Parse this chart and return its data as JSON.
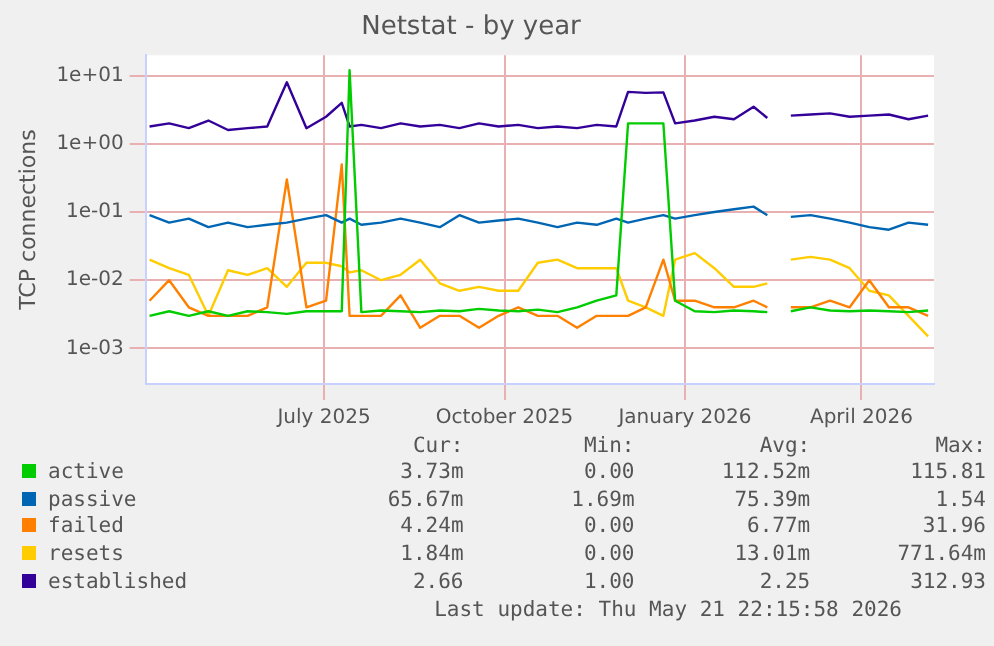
{
  "chart_data": {
    "type": "line",
    "title": "Netstat - by year",
    "ylabel": "TCP connections",
    "x": [
      "2025-04-03",
      "2025-04-13",
      "2025-04-23",
      "2025-05-03",
      "2025-05-13",
      "2025-05-23",
      "2025-06-02",
      "2025-06-12",
      "2025-06-22",
      "2025-07-02",
      "2025-07-10",
      "2025-07-14",
      "2025-07-20",
      "2025-07-30",
      "2025-08-09",
      "2025-08-19",
      "2025-08-29",
      "2025-09-08",
      "2025-09-18",
      "2025-09-28",
      "2025-10-08",
      "2025-10-18",
      "2025-10-28",
      "2025-11-07",
      "2025-11-17",
      "2025-11-27",
      "2025-12-03",
      "2025-12-12",
      "2025-12-21",
      "2025-12-27",
      "2026-01-06",
      "2026-01-16",
      "2026-01-26",
      "2026-02-05",
      "2026-02-12",
      "2026-02-18",
      "2026-02-24",
      "2026-03-06",
      "2026-03-16",
      "2026-03-26",
      "2026-04-05",
      "2026-04-15",
      "2026-04-25",
      "2026-05-05"
    ],
    "series": [
      {
        "name": "active",
        "color": "#00cc00",
        "values": [
          0.003,
          0.0035,
          0.003,
          0.0035,
          0.003,
          0.0035,
          0.0034,
          0.0032,
          0.0035,
          0.0035,
          0.0035,
          12,
          0.0034,
          0.0036,
          0.0035,
          0.0034,
          0.0036,
          0.0035,
          0.0038,
          0.0036,
          0.0035,
          0.0037,
          0.0034,
          0.004,
          0.005,
          0.006,
          2.0,
          2.0,
          2.0,
          0.005,
          0.0035,
          0.0034,
          0.0036,
          0.0035,
          0.0034,
          null,
          0.0035,
          0.004,
          0.0036,
          0.0035,
          0.0036,
          0.0035,
          0.0034,
          0.0036
        ]
      },
      {
        "name": "passive",
        "color": "#0066b3",
        "values": [
          0.09,
          0.07,
          0.08,
          0.06,
          0.07,
          0.06,
          0.065,
          0.07,
          0.08,
          0.09,
          0.07,
          0.08,
          0.065,
          0.07,
          0.08,
          0.07,
          0.06,
          0.09,
          0.07,
          0.075,
          0.08,
          0.07,
          0.06,
          0.07,
          0.065,
          0.08,
          0.07,
          0.08,
          0.09,
          0.08,
          0.09,
          0.1,
          0.11,
          0.12,
          0.09,
          null,
          0.085,
          0.09,
          0.08,
          0.07,
          0.06,
          0.055,
          0.07,
          0.065
        ]
      },
      {
        "name": "failed",
        "color": "#ff8000",
        "values": [
          0.005,
          0.01,
          0.004,
          0.003,
          0.003,
          0.003,
          0.004,
          0.3,
          0.004,
          0.005,
          0.5,
          0.003,
          0.003,
          0.003,
          0.006,
          0.002,
          0.003,
          0.003,
          0.002,
          0.003,
          0.004,
          0.003,
          0.003,
          0.002,
          0.003,
          0.003,
          0.003,
          0.004,
          0.02,
          0.005,
          0.005,
          0.004,
          0.004,
          0.005,
          0.004,
          null,
          0.004,
          0.004,
          0.005,
          0.004,
          0.01,
          0.004,
          0.004,
          0.003
        ]
      },
      {
        "name": "resets",
        "color": "#ffcc00",
        "values": [
          0.02,
          0.015,
          0.012,
          0.003,
          0.014,
          0.012,
          0.015,
          0.008,
          0.018,
          0.018,
          0.016,
          0.013,
          0.014,
          0.01,
          0.012,
          0.02,
          0.009,
          0.007,
          0.008,
          0.007,
          0.007,
          0.018,
          0.02,
          0.015,
          0.015,
          0.015,
          0.005,
          0.004,
          0.003,
          0.02,
          0.025,
          0.015,
          0.008,
          0.008,
          0.009,
          null,
          0.02,
          0.022,
          0.02,
          0.015,
          0.007,
          0.006,
          0.003,
          0.0015
        ]
      },
      {
        "name": "established",
        "color": "#330099",
        "values": [
          1.8,
          2.0,
          1.7,
          2.2,
          1.6,
          1.7,
          1.8,
          8.0,
          1.7,
          2.5,
          4.0,
          1.8,
          1.9,
          1.7,
          2.0,
          1.8,
          1.9,
          1.7,
          2.0,
          1.8,
          1.9,
          1.7,
          1.8,
          1.7,
          1.9,
          1.8,
          5.8,
          5.6,
          5.7,
          2.0,
          2.2,
          2.5,
          2.3,
          3.5,
          2.4,
          null,
          2.6,
          2.7,
          2.8,
          2.5,
          2.6,
          2.7,
          2.3,
          2.6
        ]
      }
    ],
    "xlim": [
      "2025-04-01",
      "2026-05-08"
    ],
    "xticks": [
      {
        "value": "2025-07-01",
        "label": "July 2025"
      },
      {
        "value": "2025-10-01",
        "label": "October 2025"
      },
      {
        "value": "2026-01-01",
        "label": "January 2026"
      },
      {
        "value": "2026-04-01",
        "label": "April 2026"
      }
    ],
    "ylim": [
      0.0003,
      20
    ],
    "log": true,
    "yticks": [
      {
        "value": 0.001,
        "label": "1e-03"
      },
      {
        "value": 0.01,
        "label": "1e-02"
      },
      {
        "value": 0.1,
        "label": "1e-01"
      },
      {
        "value": 1,
        "label": "1e+00"
      },
      {
        "value": 10,
        "label": "1e+01"
      }
    ],
    "grid": true,
    "legend": "bottom left",
    "marker": "none",
    "line_style": "solid",
    "annotations": [
      "Cur:",
      "Min:",
      "Avg:",
      "Max:",
      "3.73m",
      "0.00",
      "112.52m",
      "115.81",
      "65.67m",
      "1.69m",
      "75.39m",
      "1.54",
      "4.24m",
      "0.00",
      "6.77m",
      "31.96",
      "1.84m",
      "0.00",
      "13.01m",
      "771.64m",
      "2.66",
      "1.00",
      "2.25",
      "312.93",
      "Last update: Thu May 21 22:15:58 2026"
    ]
  }
}
